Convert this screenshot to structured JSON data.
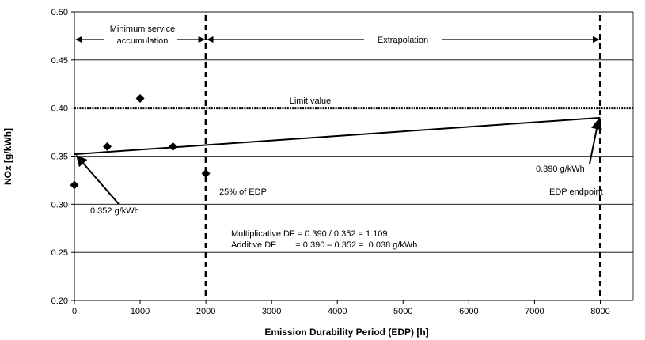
{
  "chart_data": {
    "type": "scatter",
    "xlabel": "Emission Durability Period (EDP) [h]",
    "ylabel": "NOx [g/kWh]",
    "xlim": [
      0,
      8500
    ],
    "ylim": [
      0.2,
      0.5
    ],
    "x_ticks": [
      "0",
      "1000",
      "2000",
      "3000",
      "4000",
      "5000",
      "6000",
      "7000",
      "8000"
    ],
    "y_ticks": [
      "0.20",
      "0.25",
      "0.30",
      "0.35",
      "0.40",
      "0.45",
      "0.50"
    ],
    "grid": "horizontal",
    "points": [
      {
        "x": 0,
        "y": 0.32
      },
      {
        "x": 500,
        "y": 0.36
      },
      {
        "x": 1000,
        "y": 0.41
      },
      {
        "x": 1500,
        "y": 0.36
      },
      {
        "x": 2000,
        "y": 0.332
      }
    ],
    "trend_line": {
      "x": [
        0,
        8000
      ],
      "y": [
        0.352,
        0.39
      ]
    },
    "limit_line": {
      "y": 0.4,
      "label": "Limit value"
    },
    "vertical_lines": [
      2000,
      8000
    ],
    "annotations": {
      "min_service": [
        "Minimum service",
        "accumulation"
      ],
      "extrapolation": "Extrapolation",
      "limit_value": "Limit value",
      "start_value": "0.352 g/kWh",
      "end_value": "0.390 g/kWh",
      "pct_edp": "25% of EDP",
      "edp_endpoint": "EDP endpoint",
      "df_mult": "Multiplicative DF = 0.390 / 0.352 = 1.109",
      "df_add": "Additive DF        = 0.390 – 0.352 =  0.038 g/kWh"
    }
  }
}
